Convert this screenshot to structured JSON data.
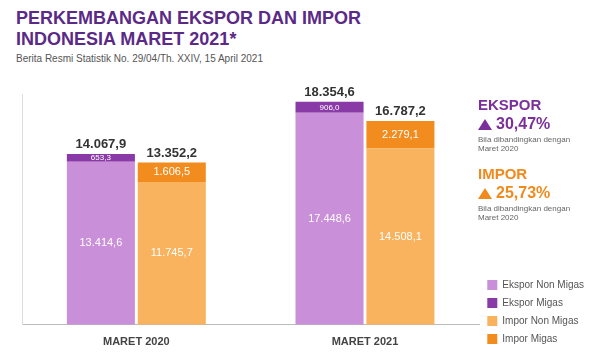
{
  "chart_data": {
    "type": "bar",
    "title": "PERKEMBANGAN EKSPOR DAN IMPOR INDONESIA MARET 2021*",
    "subtitle": "Berita Resmi Statistik No. 29/04/Th. XXIV, 15 April 2021",
    "categories": [
      "MARET 2020",
      "MARET 2021"
    ],
    "stacked": true,
    "data_labels": true,
    "tick_labels": "x",
    "grid": false,
    "legend": "lower right",
    "ylim": [
      0,
      19000
    ],
    "stacks": [
      {
        "totals": [
          14067.9,
          18354.6
        ],
        "total_labels": [
          "14.067,9",
          "18.354,6"
        ],
        "series": [
          {
            "name": "Ekspor Non Migas",
            "color": "#c98fd8",
            "values": [
              13414.6,
              17448.6
            ],
            "value_labels": [
              "13.414,6",
              "17.448,6"
            ]
          },
          {
            "name": "Ekspor Migas",
            "color": "#8a3aa6",
            "values": [
              653.3,
              906.0
            ],
            "value_labels": [
              "653,3",
              "906,0"
            ]
          }
        ]
      },
      {
        "totals": [
          13352.2,
          16787.2
        ],
        "total_labels": [
          "13.352,2",
          "16.787,2"
        ],
        "series": [
          {
            "name": "Impor Non Migas",
            "color": "#f9b35e",
            "values": [
              11745.7,
              14508.1
            ],
            "value_labels": [
              "11.745,7",
              "14.508,1"
            ]
          },
          {
            "name": "Impor Migas",
            "color": "#f28c1e",
            "values": [
              1606.5,
              2279.1
            ],
            "value_labels": [
              "1.606,5",
              "2.279,1"
            ]
          }
        ]
      }
    ],
    "annotations": [
      {
        "text": "EKSPOR",
        "value": 30.47,
        "value_label": "30,47%",
        "comparison": "Bila dibandingkan dengan Maret 2020",
        "color": "#7b2f9a"
      },
      {
        "text": "IMPOR",
        "value": 25.73,
        "value_label": "25,73%",
        "comparison": "Bila dibandingkan dengan Maret 2020",
        "color": "#f08a1c"
      }
    ]
  }
}
